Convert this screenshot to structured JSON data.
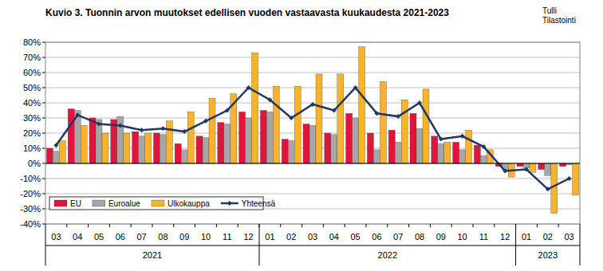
{
  "chart_data": {
    "type": "bar",
    "title": "Kuvio 3. Tuonnin arvon muutokset edellisen vuoden vastaavasta kuukaudesta 2021-2023",
    "source": [
      "Tulli",
      "Tilastointi"
    ],
    "categories": [
      "03",
      "04",
      "05",
      "06",
      "07",
      "08",
      "09",
      "10",
      "11",
      "12",
      "01",
      "02",
      "03",
      "04",
      "05",
      "06",
      "07",
      "08",
      "09",
      "10",
      "11",
      "12",
      "01",
      "02",
      "03"
    ],
    "x_groups": [
      {
        "label": "2021",
        "count": 10
      },
      {
        "label": "2022",
        "count": 12
      },
      {
        "label": "2023",
        "count": 3
      }
    ],
    "series": [
      {
        "name": "EU",
        "type": "bar",
        "color": "#e3143c",
        "values": [
          10,
          36,
          30,
          29,
          21,
          20,
          13,
          18,
          27,
          34,
          35,
          16,
          26,
          20,
          33,
          20,
          22,
          33,
          18,
          14,
          12,
          -2,
          -2,
          -4,
          -2
        ]
      },
      {
        "name": "Euroalue",
        "type": "bar",
        "color": "#a6a6a6",
        "values": [
          8,
          35,
          29,
          31,
          18,
          19,
          9,
          17,
          26,
          30,
          34,
          15,
          25,
          19,
          30,
          9,
          14,
          23,
          13,
          9,
          5,
          -4,
          -3,
          -8,
          -1
        ]
      },
      {
        "name": "Ulkokauppa",
        "type": "bar",
        "color": "#f7b32b",
        "values": [
          15,
          25,
          20,
          20,
          20,
          28,
          34,
          43,
          46,
          73,
          51,
          51,
          59,
          59,
          77,
          54,
          42,
          49,
          14,
          22,
          9,
          -9,
          -6,
          -33,
          -21
        ]
      },
      {
        "name": "Yhteensä",
        "type": "line",
        "color": "#1f3864",
        "marker": "diamond",
        "values": [
          12,
          32,
          26,
          25,
          22,
          23,
          21,
          28,
          35,
          50,
          42,
          30,
          39,
          35,
          50,
          33,
          31,
          40,
          16,
          18,
          11,
          -5,
          -4,
          -17,
          -10
        ]
      }
    ],
    "ylim": [
      -40,
      80
    ],
    "yticks": [
      {
        "value": -40,
        "label": "-40%"
      },
      {
        "value": -30,
        "label": "-30%"
      },
      {
        "value": -20,
        "label": "-20%"
      },
      {
        "value": -10,
        "label": "-10%"
      },
      {
        "value": 0,
        "label": "0%"
      },
      {
        "value": 10,
        "label": "10%"
      },
      {
        "value": 20,
        "label": "20%"
      },
      {
        "value": 30,
        "label": "30%"
      },
      {
        "value": 40,
        "label": "40%"
      },
      {
        "value": 50,
        "label": "50%"
      },
      {
        "value": 60,
        "label": "60%"
      },
      {
        "value": 70,
        "label": "70%"
      },
      {
        "value": 80,
        "label": "80%"
      }
    ],
    "grid": true,
    "legend": "lower left"
  }
}
